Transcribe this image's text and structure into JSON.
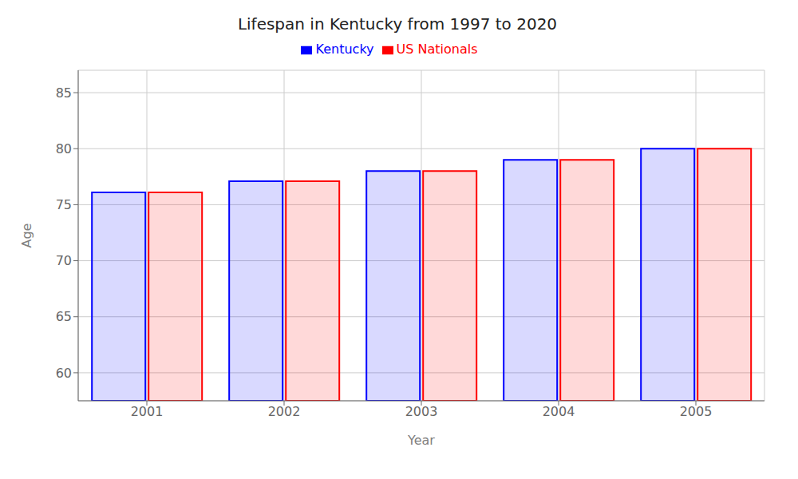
{
  "chart_data": {
    "type": "bar",
    "title": "Lifespan in Kentucky from 1997 to 2020",
    "xlabel": "Year",
    "ylabel": "Age",
    "categories": [
      "2001",
      "2002",
      "2003",
      "2004",
      "2005"
    ],
    "series": [
      {
        "name": "Kentucky",
        "color": "#0000ff",
        "values": [
          76.1,
          77.1,
          78.0,
          79.0,
          80.0
        ]
      },
      {
        "name": "US Nationals",
        "color": "#ff0000",
        "values": [
          76.1,
          77.1,
          78.0,
          79.0,
          80.0
        ]
      }
    ],
    "ylim": [
      57.5,
      87
    ],
    "yticks": [
      60,
      65,
      70,
      75,
      80,
      85
    ],
    "grid": true,
    "legend": "top"
  }
}
